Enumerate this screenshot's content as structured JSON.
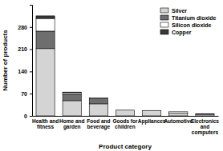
{
  "chart_data": {
    "type": "bar",
    "stacked": true,
    "x_label": "Product category",
    "y_label": "Number of products",
    "categories": [
      "Health and fitness",
      "Home and garden",
      "Food and beverage",
      "Goods for children",
      "Appliances",
      "Automotive",
      "Electronics and computers"
    ],
    "series": [
      {
        "name": "Silver",
        "color": "#d4d4d4",
        "values": [
          212,
          48,
          38,
          18,
          17,
          8,
          5
        ]
      },
      {
        "name": "Titanium dioxide",
        "color": "#6e6e6e",
        "values": [
          55,
          20,
          16,
          0,
          0,
          0,
          0
        ]
      },
      {
        "name": "Silicon dioxide",
        "color": "#ffffff",
        "values": [
          40,
          5,
          3,
          0,
          0,
          5,
          0
        ]
      },
      {
        "name": "Copper",
        "color": "#3a3a3a",
        "values": [
          8,
          2,
          0,
          0,
          0,
          0,
          1
        ]
      }
    ],
    "ylim": [
      0,
      350
    ],
    "yticks": [
      0,
      70,
      140,
      210,
      280
    ],
    "legend": "upper right"
  }
}
